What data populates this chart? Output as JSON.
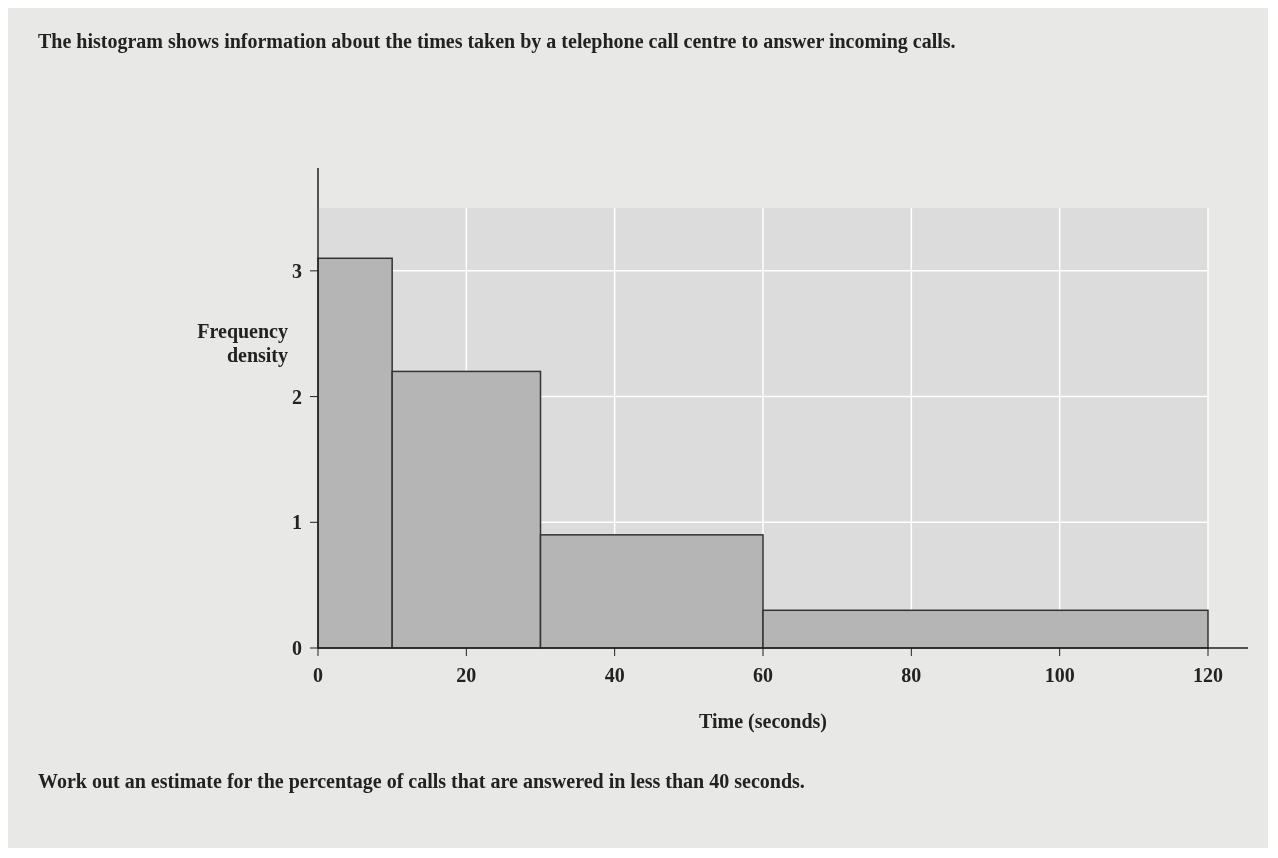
{
  "chart_data": {
    "type": "histogram",
    "title": "The histogram shows information about the times taken by a telephone call centre to answer incoming calls.",
    "xlabel": "Time (seconds)",
    "ylabel": "Frequency density",
    "bins": [
      0,
      10,
      30,
      60,
      120
    ],
    "values": [
      3.1,
      2.2,
      0.9,
      0.3
    ],
    "color": "#b5b5b5",
    "xlim": [
      0,
      120
    ],
    "xticks": [
      0,
      20,
      40,
      60,
      80,
      100,
      120
    ],
    "ylim": [
      0,
      3.5
    ],
    "yticks": [
      0,
      1,
      2,
      3
    ],
    "grid": true,
    "annotations": [
      "Work out an estimate for the percentage of calls that are answered in less than 40 seconds."
    ]
  }
}
